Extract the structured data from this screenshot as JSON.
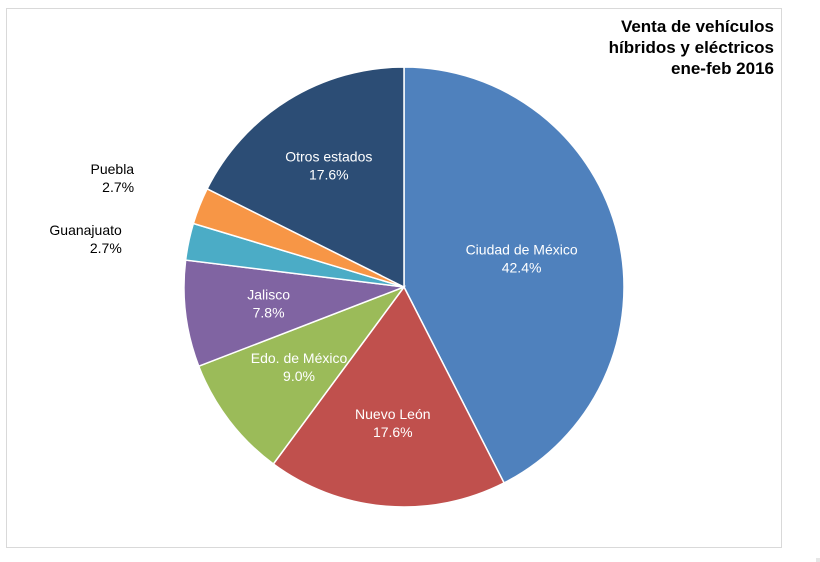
{
  "chart_data": {
    "type": "pie",
    "title": [
      "Venta de vehículos",
      "híbridos y eléctricos",
      "ene-feb 2016"
    ],
    "slices": [
      {
        "label": "Ciudad de México",
        "value": 42.4,
        "value_text": "42.4%",
        "color": "#4F81BD",
        "label_inside": true
      },
      {
        "label": "Nuevo León",
        "value": 17.6,
        "value_text": "17.6%",
        "color": "#C0504D",
        "label_inside": true
      },
      {
        "label": "Edo. de México",
        "value": 9.0,
        "value_text": "9.0%",
        "color": "#9BBB59",
        "label_inside": true
      },
      {
        "label": "Jalisco",
        "value": 7.8,
        "value_text": "7.8%",
        "color": "#8064A2",
        "label_inside": true
      },
      {
        "label": "Guanajuato",
        "value": 2.7,
        "value_text": "2.7%",
        "color": "#4BACC6",
        "label_inside": false
      },
      {
        "label": "Puebla",
        "value": 2.7,
        "value_text": "2.7%",
        "color": "#F79646",
        "label_inside": false
      },
      {
        "label": "Otros estados",
        "value": 17.6,
        "value_text": "17.6%",
        "color": "#2C4D75",
        "label_inside": true
      }
    ]
  }
}
